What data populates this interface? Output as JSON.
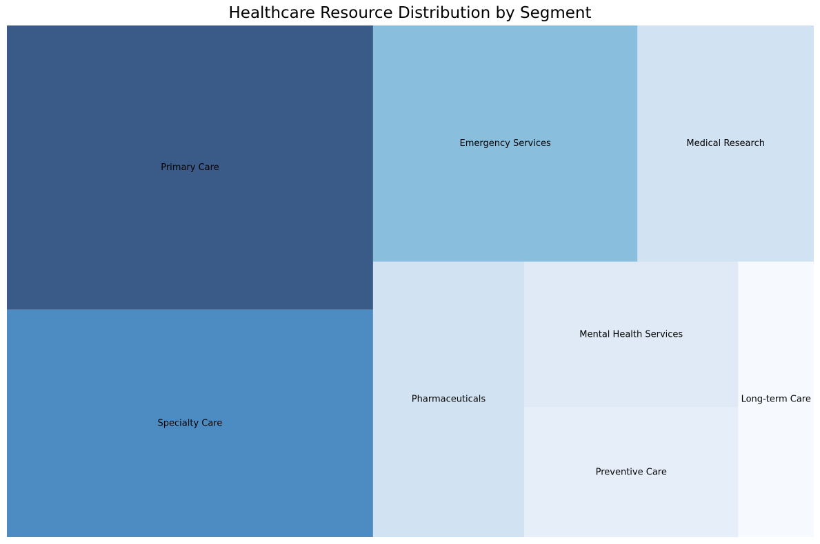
{
  "chart_data": {
    "type": "treemap",
    "title": "Healthcare Resource Distribution by Segment",
    "segments": [
      {
        "name": "Primary Care",
        "value": 30,
        "color": "#3a5a88"
      },
      {
        "name": "Specialty Care",
        "value": 24,
        "color": "#4c8cc3"
      },
      {
        "name": "Emergency Services",
        "value": 18,
        "color": "#89bedd"
      },
      {
        "name": "Medical Research",
        "value": 12,
        "color": "#d1e2f2"
      },
      {
        "name": "Pharmaceuticals",
        "value": 12,
        "color": "#d1e2f2"
      },
      {
        "name": "Mental Health Services",
        "value": 9,
        "color": "#dfeaf6"
      },
      {
        "name": "Preventive Care",
        "value": 8,
        "color": "#e6eff9"
      },
      {
        "name": "Long-term Care",
        "value": 6,
        "color": "#f6faff"
      }
    ]
  }
}
